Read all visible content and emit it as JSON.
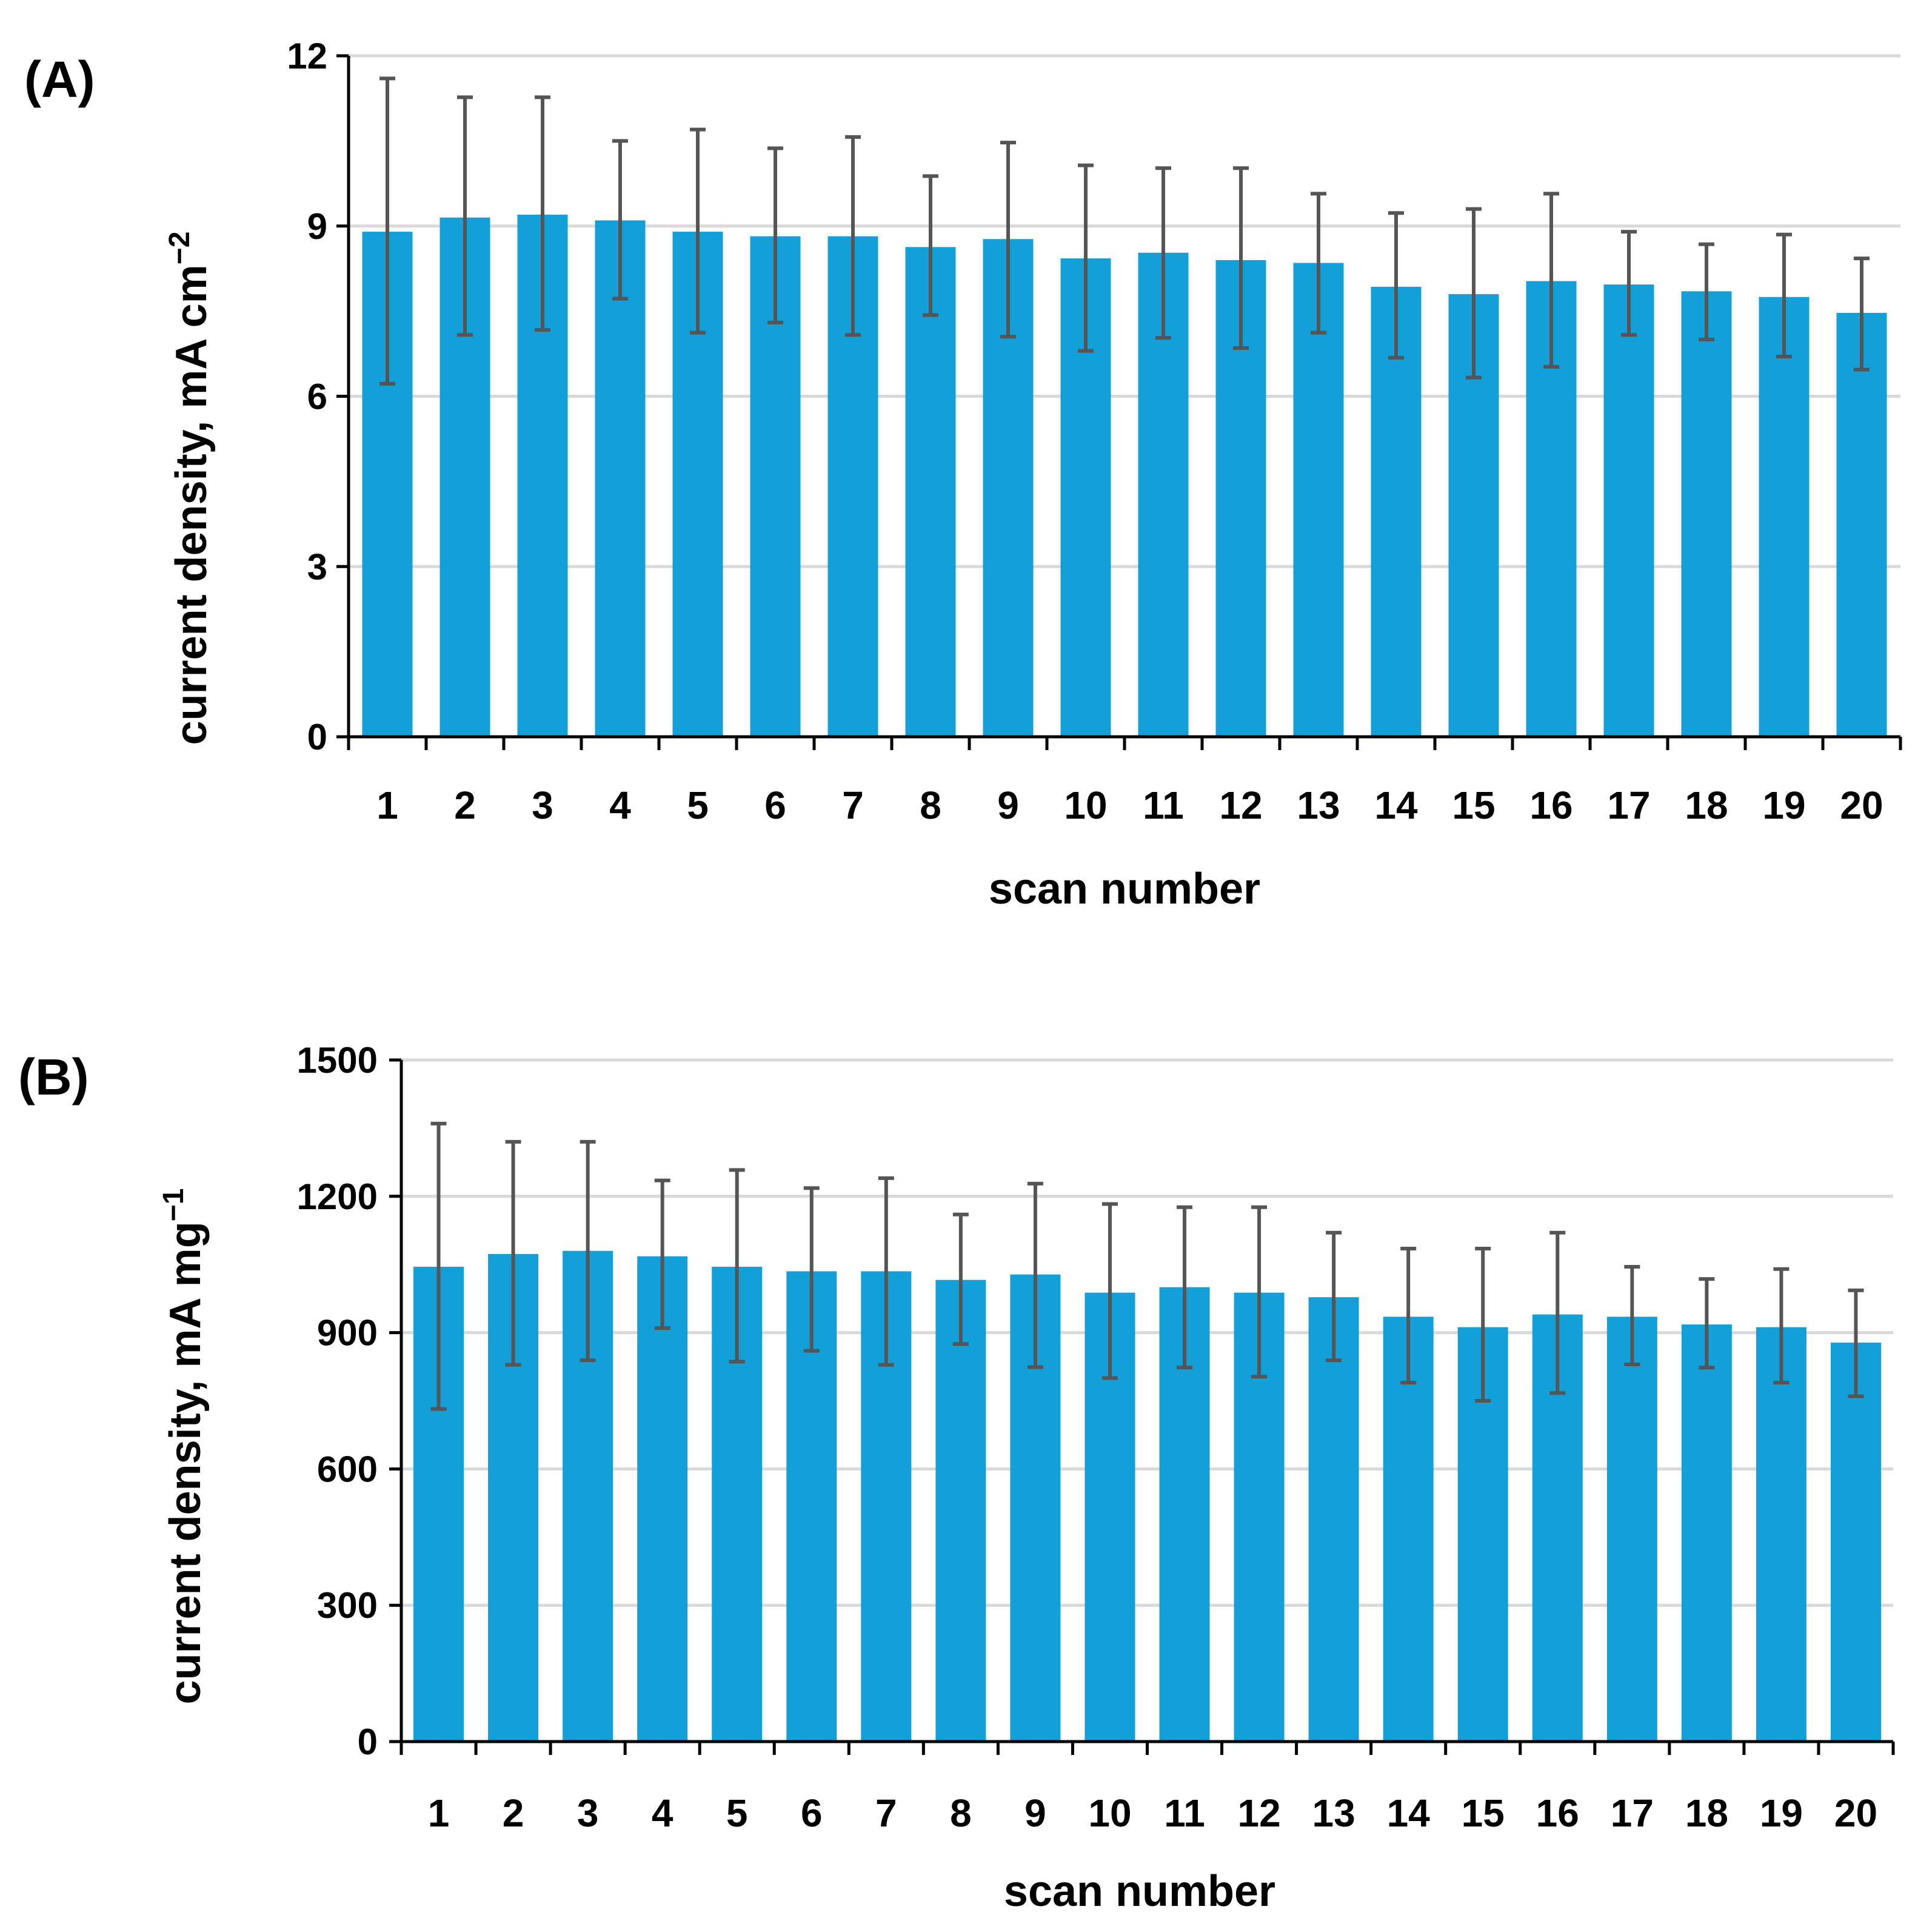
{
  "colors": {
    "bar": "#139FD8",
    "error_bar": "#555555",
    "grid": "#D9D9D9",
    "axis": "#000000"
  },
  "chart_data": [
    {
      "type": "bar",
      "panel_label": "(A)",
      "xlabel": "scan number",
      "ylabel_main": "current density, mA cm",
      "ylabel_sup": "−2",
      "ylim": [
        0,
        12
      ],
      "yticks": [
        0,
        3,
        6,
        9,
        12
      ],
      "grid": true,
      "categories": [
        "1",
        "2",
        "3",
        "4",
        "5",
        "6",
        "7",
        "8",
        "9",
        "10",
        "11",
        "12",
        "13",
        "14",
        "15",
        "16",
        "17",
        "18",
        "19",
        "20"
      ],
      "values": [
        8.9,
        9.15,
        9.2,
        9.1,
        8.9,
        8.82,
        8.82,
        8.63,
        8.77,
        8.43,
        8.53,
        8.4,
        8.35,
        7.93,
        7.8,
        8.03,
        7.97,
        7.85,
        7.75,
        7.47
      ],
      "error_upper": [
        11.6,
        11.27,
        11.27,
        10.5,
        10.7,
        10.37,
        10.57,
        9.88,
        10.47,
        10.07,
        10.02,
        10.02,
        9.57,
        9.23,
        9.3,
        9.57,
        8.9,
        8.68,
        8.85,
        8.43
      ],
      "error_lower": [
        6.22,
        7.08,
        7.17,
        7.72,
        7.12,
        7.3,
        7.08,
        7.43,
        7.05,
        6.8,
        7.03,
        6.85,
        7.12,
        6.68,
        6.33,
        6.52,
        7.08,
        7.0,
        6.7,
        6.47
      ]
    },
    {
      "type": "bar",
      "panel_label": "(B)",
      "xlabel": "scan number",
      "ylabel_main": "current density, mA mg",
      "ylabel_sup": "−1",
      "ylim": [
        0,
        1500
      ],
      "yticks": [
        0,
        300,
        600,
        900,
        1200,
        1500
      ],
      "grid": true,
      "categories": [
        "1",
        "2",
        "3",
        "4",
        "5",
        "6",
        "7",
        "8",
        "9",
        "10",
        "11",
        "12",
        "13",
        "14",
        "15",
        "16",
        "17",
        "18",
        "19",
        "20"
      ],
      "values": [
        1045,
        1073,
        1080,
        1068,
        1045,
        1035,
        1035,
        1016,
        1028,
        988,
        1000,
        988,
        978,
        935,
        912,
        940,
        935,
        918,
        912,
        878
      ],
      "error_upper": [
        1360,
        1320,
        1320,
        1235,
        1258,
        1218,
        1240,
        1160,
        1228,
        1183,
        1176,
        1176,
        1120,
        1085,
        1085,
        1120,
        1045,
        1018,
        1040,
        993
      ],
      "error_lower": [
        732,
        829,
        839,
        910,
        836,
        860,
        829,
        875,
        824,
        800,
        823,
        803,
        839,
        790,
        750,
        767,
        830,
        823,
        790,
        760
      ]
    }
  ]
}
